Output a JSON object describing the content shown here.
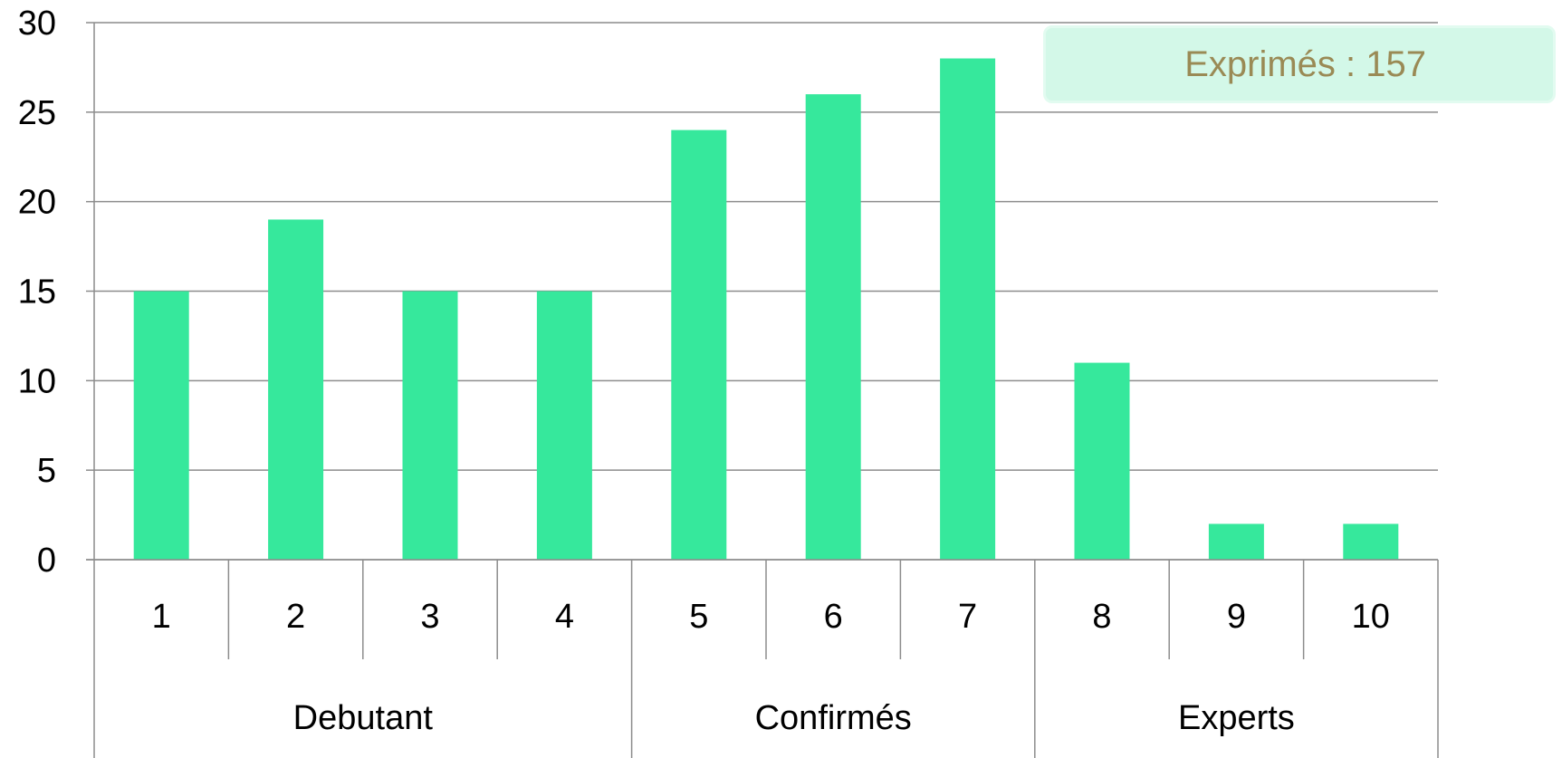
{
  "annotation": {
    "text": "Exprimés : 157"
  },
  "colors": {
    "bar": "#36e89c",
    "gridline": "#8c8c8c",
    "axis": "#8c8c8c",
    "annotation_bg": "#d3f8e8",
    "annotation_text": "#9a8a55"
  },
  "chart_data": {
    "type": "bar",
    "title": "",
    "xlabel": "",
    "ylabel": "",
    "categories": [
      "1",
      "2",
      "3",
      "4",
      "5",
      "6",
      "7",
      "8",
      "9",
      "10"
    ],
    "values": [
      15,
      19,
      15,
      15,
      24,
      26,
      28,
      11,
      2,
      2
    ],
    "groups": [
      {
        "label": "Debutant",
        "categories": [
          "1",
          "2",
          "3",
          "4"
        ]
      },
      {
        "label": "Confirmés",
        "categories": [
          "5",
          "6",
          "7"
        ]
      },
      {
        "label": "Experts",
        "categories": [
          "8",
          "9",
          "10"
        ]
      }
    ],
    "ylim": [
      0,
      30
    ],
    "yticks": [
      0,
      5,
      10,
      15,
      20,
      25,
      30
    ],
    "grid": true,
    "legend": "none"
  }
}
